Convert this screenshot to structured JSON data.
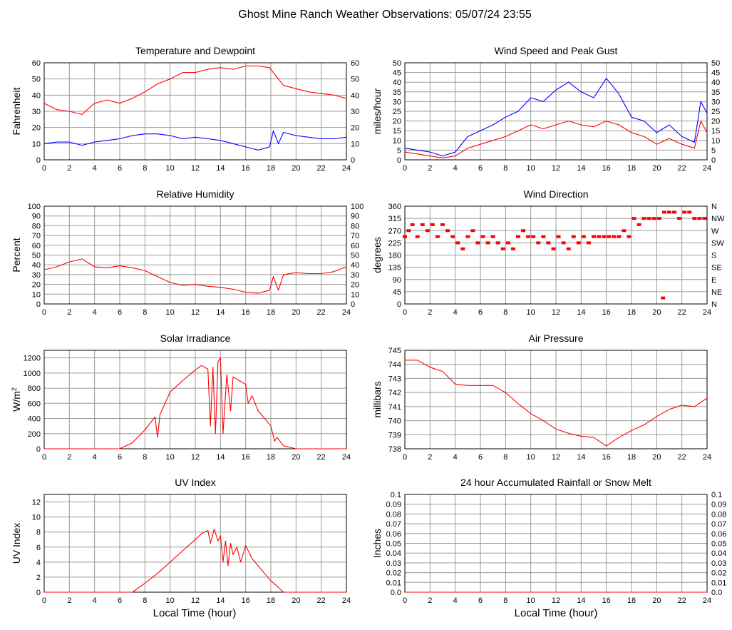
{
  "page": {
    "title": "Ghost Mine Ranch Weather Observations: 05/07/24 23:55"
  },
  "x_axis": {
    "label": "Local Time (hour)",
    "ticks": [
      "0",
      "2",
      "4",
      "6",
      "8",
      "10",
      "12",
      "14",
      "16",
      "18",
      "20",
      "22",
      "24"
    ]
  },
  "chart_data": [
    {
      "type": "line",
      "title": "Temperature and Dewpoint",
      "ylabel": "Fahrenheit",
      "ylim": [
        0,
        60
      ],
      "yticks": [
        "0",
        "10",
        "20",
        "30",
        "40",
        "50",
        "60"
      ],
      "right_ticks": [
        "0",
        "10",
        "20",
        "30",
        "40",
        "50",
        "60"
      ],
      "xlim": [
        0,
        24
      ],
      "grid": true,
      "series": [
        {
          "color": "#ff0000",
          "x": [
            0,
            1,
            2,
            3,
            4,
            5,
            6,
            7,
            8,
            9,
            10,
            11,
            12,
            13,
            14,
            15,
            16,
            17,
            17.9,
            18.2,
            19,
            20,
            21,
            22,
            23,
            24
          ],
          "y": [
            35,
            31,
            30,
            28,
            35,
            37,
            35,
            38,
            42,
            47,
            50,
            54,
            54,
            56,
            57,
            56,
            58,
            58,
            57,
            54,
            46,
            44,
            42,
            41,
            40,
            38
          ]
        },
        {
          "color": "#0000ff",
          "x": [
            0,
            1,
            2,
            3,
            4,
            5,
            6,
            7,
            8,
            9,
            10,
            11,
            12,
            13,
            14,
            15,
            16,
            17,
            17.9,
            18.2,
            18.6,
            19,
            20,
            21,
            22,
            23,
            24
          ],
          "y": [
            10,
            11,
            11,
            9,
            11,
            12,
            13,
            15,
            16,
            16,
            15,
            13,
            14,
            13,
            12,
            10,
            8,
            6,
            8,
            18,
            10,
            17,
            15,
            14,
            13,
            13,
            14
          ]
        }
      ]
    },
    {
      "type": "line",
      "title": "Wind Speed and Peak Gust",
      "ylabel": "miles/hour",
      "ylim": [
        0,
        50
      ],
      "yticks": [
        "0",
        "5",
        "10",
        "15",
        "20",
        "25",
        "30",
        "35",
        "40",
        "45",
        "50"
      ],
      "right_ticks": [
        "0",
        "5",
        "10",
        "15",
        "20",
        "25",
        "30",
        "35",
        "40",
        "45",
        "50"
      ],
      "xlim": [
        0,
        24
      ],
      "grid": true,
      "series": [
        {
          "color": "#0000ff",
          "x": [
            0,
            1,
            2,
            3,
            4,
            5,
            6,
            7,
            8,
            9,
            10,
            11,
            12,
            13,
            14,
            15,
            16,
            17,
            18,
            19,
            20,
            21,
            22,
            23,
            23.5,
            24
          ],
          "y": [
            6,
            5,
            4,
            2,
            4,
            12,
            15,
            18,
            22,
            25,
            32,
            30,
            36,
            40,
            35,
            32,
            42,
            34,
            22,
            20,
            14,
            18,
            12,
            9,
            30,
            24
          ]
        },
        {
          "color": "#ff0000",
          "x": [
            0,
            1,
            2,
            3,
            4,
            5,
            6,
            7,
            8,
            9,
            10,
            11,
            12,
            13,
            14,
            15,
            16,
            17,
            18,
            19,
            20,
            21,
            22,
            23,
            23.5,
            24
          ],
          "y": [
            4,
            3,
            2,
            1,
            2,
            6,
            8,
            10,
            12,
            15,
            18,
            16,
            18,
            20,
            18,
            17,
            20,
            18,
            14,
            12,
            8,
            11,
            8,
            6,
            20,
            14
          ]
        }
      ]
    },
    {
      "type": "line",
      "title": "Relative Humidity",
      "ylabel": "Percent",
      "ylim": [
        0,
        100
      ],
      "yticks": [
        "0",
        "10",
        "20",
        "30",
        "40",
        "50",
        "60",
        "70",
        "80",
        "90",
        "100"
      ],
      "right_ticks": [
        "0",
        "10",
        "20",
        "30",
        "40",
        "50",
        "60",
        "70",
        "80",
        "90",
        "100"
      ],
      "xlim": [
        0,
        24
      ],
      "grid": true,
      "series": [
        {
          "color": "#ff0000",
          "x": [
            0,
            1,
            2,
            3,
            4,
            5,
            6,
            7,
            8,
            9,
            10,
            11,
            12,
            13,
            14,
            15,
            16,
            17,
            17.9,
            18.2,
            18.6,
            19,
            20,
            21,
            22,
            23,
            24
          ],
          "y": [
            35,
            38,
            43,
            46,
            38,
            37,
            39,
            37,
            34,
            28,
            22,
            19,
            20,
            18,
            17,
            15,
            12,
            11,
            14,
            28,
            14,
            30,
            32,
            31,
            31,
            33,
            38
          ]
        }
      ]
    },
    {
      "type": "scatter",
      "title": "Wind Direction",
      "ylabel": "degrees",
      "ylim": [
        0,
        360
      ],
      "yticks": [
        "0",
        "45",
        "90",
        "135",
        "180",
        "225",
        "270",
        "315",
        "360"
      ],
      "right_ticks": [
        "N",
        "NE",
        "E",
        "SE",
        "S",
        "SW",
        "W",
        "NW",
        "N"
      ],
      "xlim": [
        0,
        24
      ],
      "grid": true,
      "series": [
        {
          "color": "#ff0000",
          "x": [
            0,
            0.3,
            0.6,
            1,
            1.4,
            1.8,
            2.2,
            2.6,
            3,
            3.4,
            3.8,
            4.2,
            4.6,
            5,
            5.4,
            5.8,
            6.2,
            6.6,
            7,
            7.4,
            7.8,
            8.2,
            8.6,
            9,
            9.4,
            9.8,
            10.2,
            10.6,
            11,
            11.4,
            11.8,
            12.2,
            12.6,
            13,
            13.4,
            13.8,
            14.2,
            14.6,
            15,
            15.4,
            15.8,
            16.2,
            16.6,
            17,
            17.4,
            17.8,
            18.2,
            18.6,
            19,
            19.4,
            19.8,
            20.2,
            20.6,
            21,
            21.4,
            21.8,
            22.2,
            22.6,
            23,
            23.4,
            23.8,
            20.5
          ],
          "y": [
            248,
            270,
            292,
            248,
            292,
            270,
            292,
            248,
            292,
            270,
            248,
            225,
            203,
            248,
            270,
            225,
            248,
            225,
            248,
            225,
            203,
            225,
            203,
            248,
            270,
            248,
            248,
            225,
            248,
            225,
            203,
            248,
            225,
            203,
            248,
            225,
            248,
            225,
            248,
            248,
            248,
            248,
            248,
            248,
            270,
            248,
            315,
            292,
            315,
            315,
            315,
            315,
            338,
            338,
            338,
            315,
            338,
            338,
            315,
            315,
            315,
            22
          ]
        }
      ]
    },
    {
      "type": "line",
      "title": "Solar Irradiance",
      "ylabel": "W/m",
      "ylabel_sup": "2",
      "ylim": [
        0,
        1300
      ],
      "yticks": [
        "0",
        "200",
        "400",
        "600",
        "800",
        "1000",
        "1200"
      ],
      "xlim": [
        0,
        24
      ],
      "grid": true,
      "series": [
        {
          "color": "#ff0000",
          "x": [
            0,
            6,
            7,
            8,
            8.8,
            9,
            9.2,
            10,
            11,
            12,
            12.5,
            13,
            13.2,
            13.4,
            13.6,
            13.8,
            14,
            14.2,
            14.5,
            14.8,
            15,
            15.5,
            16,
            16.2,
            16.5,
            17,
            17.5,
            18,
            18.3,
            18.5,
            19,
            20,
            24
          ],
          "y": [
            0,
            0,
            80,
            250,
            420,
            150,
            450,
            750,
            900,
            1040,
            1100,
            1050,
            300,
            1080,
            200,
            1150,
            1200,
            200,
            980,
            500,
            950,
            900,
            850,
            600,
            700,
            500,
            400,
            300,
            100,
            150,
            40,
            0,
            0
          ]
        }
      ]
    },
    {
      "type": "line",
      "title": "Air Pressure",
      "ylabel": "millibars",
      "ylim": [
        738,
        745
      ],
      "yticks": [
        "738",
        "739",
        "740",
        "741",
        "742",
        "743",
        "744",
        "745"
      ],
      "xlim": [
        0,
        24
      ],
      "grid": true,
      "series": [
        {
          "color": "#ff0000",
          "x": [
            0,
            1,
            2,
            3,
            4,
            5,
            6,
            7,
            8,
            9,
            10,
            11,
            12,
            13,
            14,
            15,
            16,
            17,
            18,
            19,
            20,
            21,
            22,
            23,
            24
          ],
          "y": [
            744.3,
            744.3,
            743.8,
            743.5,
            742.6,
            742.5,
            742.5,
            742.5,
            742.0,
            741.2,
            740.5,
            740.0,
            739.4,
            739.1,
            738.9,
            738.8,
            738.2,
            738.8,
            739.3,
            739.7,
            740.3,
            740.8,
            741.1,
            741.0,
            741.6
          ]
        }
      ]
    },
    {
      "type": "line",
      "title": "UV Index",
      "ylabel": "UV Index",
      "ylim": [
        0,
        13
      ],
      "yticks": [
        "0",
        "2",
        "4",
        "6",
        "8",
        "10",
        "12"
      ],
      "xlim": [
        0,
        24
      ],
      "grid": true,
      "series": [
        {
          "color": "#ff0000",
          "x": [
            0,
            7,
            8,
            9,
            10,
            11,
            12,
            12.5,
            13,
            13.2,
            13.5,
            13.8,
            14,
            14.2,
            14.4,
            14.6,
            14.8,
            15,
            15.3,
            15.6,
            16,
            16.5,
            17,
            17.5,
            18,
            18.5,
            19,
            24
          ],
          "y": [
            0,
            0,
            1.2,
            2.5,
            4,
            5.5,
            7,
            7.8,
            8.2,
            6.5,
            8.4,
            6.8,
            7.5,
            4,
            6.8,
            3.5,
            6.5,
            5,
            6,
            4,
            6.2,
            4.5,
            3.5,
            2.5,
            1.5,
            0.8,
            0,
            0
          ]
        }
      ]
    },
    {
      "type": "line",
      "title": "24 hour Accumulated Rainfall or Snow Melt",
      "ylabel": "Inches",
      "ylim": [
        0,
        0.1
      ],
      "yticks": [
        "0.0",
        "0.01",
        "0.02",
        "0.03",
        "0.04",
        "0.05",
        "0.06",
        "0.07",
        "0.08",
        "0.09",
        "0.1"
      ],
      "right_ticks": [
        "0.0",
        "0.01",
        "0.02",
        "0.03",
        "0.04",
        "0.05",
        "0.06",
        "0.07",
        "0.08",
        "0.09",
        "0.1"
      ],
      "xlim": [
        0,
        24
      ],
      "grid": true,
      "series": [
        {
          "color": "#ff0000",
          "x": [
            0,
            24
          ],
          "y": [
            0,
            0
          ]
        }
      ]
    }
  ]
}
